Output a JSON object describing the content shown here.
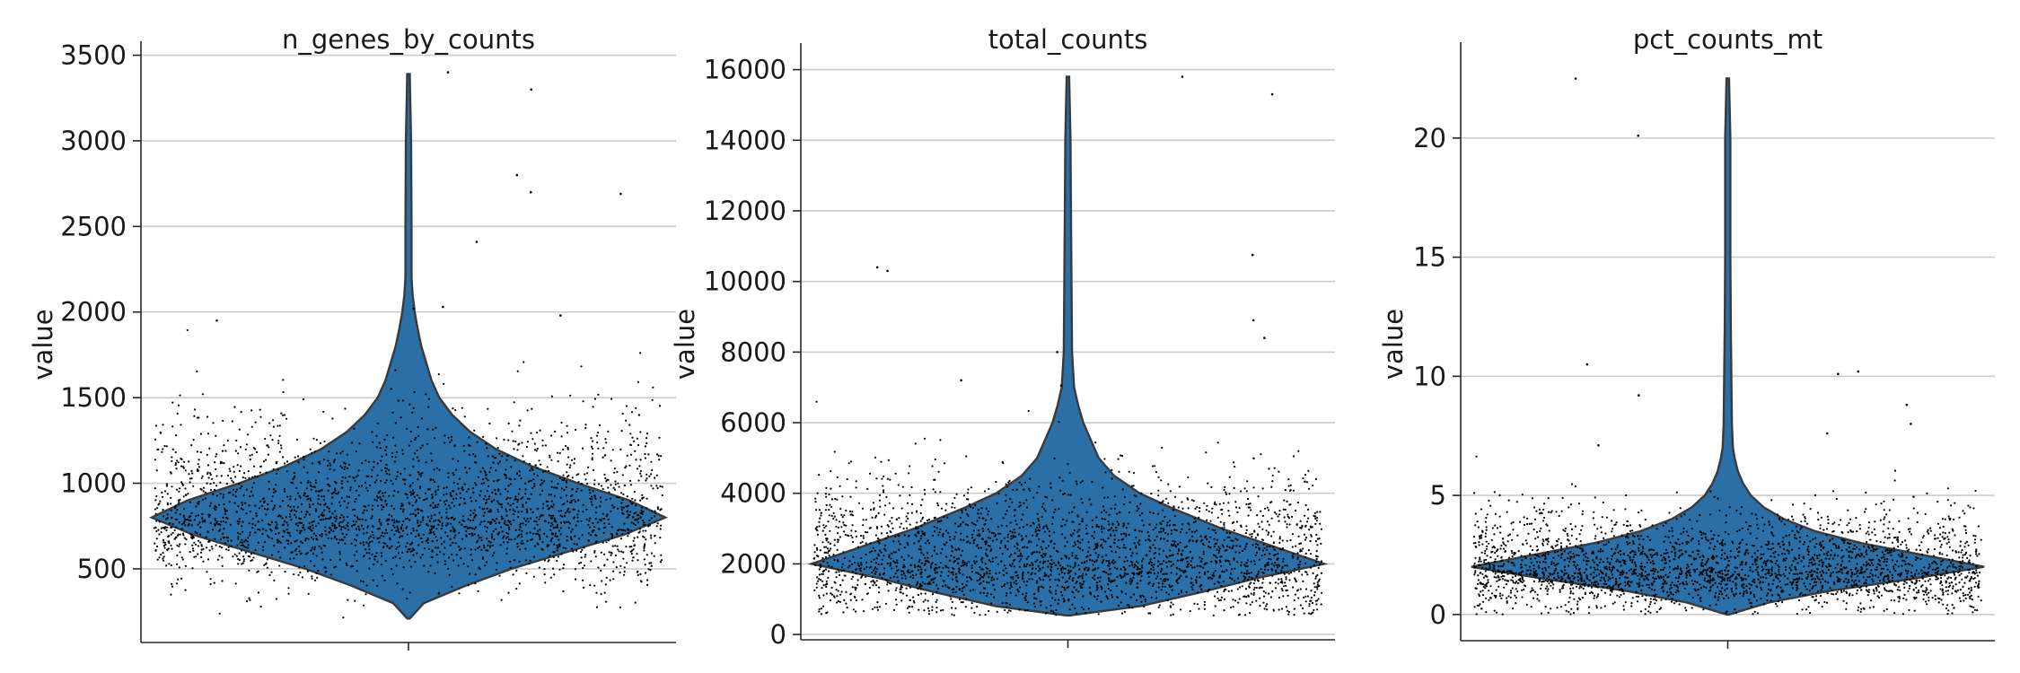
{
  "chart_data": [
    {
      "type": "violin",
      "title": "n_genes_by_counts",
      "xlabel": "",
      "ylabel": "value",
      "ylim": [
        70,
        3550
      ],
      "yticks": [
        500,
        1000,
        1500,
        2000,
        2500,
        3000,
        3500
      ],
      "grid": true,
      "color": "#2a6fa5",
      "violin": {
        "y": [
          210,
          300,
          400,
          500,
          600,
          700,
          800,
          900,
          1000,
          1100,
          1200,
          1300,
          1400,
          1500,
          1600,
          1700,
          1800,
          1900,
          2000,
          2100,
          2200,
          2500,
          3000,
          3390
        ],
        "half_width": [
          0.0,
          0.03,
          0.11,
          0.2,
          0.31,
          0.42,
          0.5,
          0.43,
          0.33,
          0.24,
          0.17,
          0.12,
          0.085,
          0.06,
          0.045,
          0.035,
          0.025,
          0.018,
          0.012,
          0.008,
          0.006,
          0.006,
          0.005,
          0.0
        ]
      },
      "points": {
        "n": 2640,
        "center": 800,
        "spread": 230,
        "min": 210,
        "max": 2000
      },
      "outliers": [
        2020,
        2800,
        2700,
        3300,
        2410,
        2690,
        3400,
        1980,
        1950,
        2030
      ]
    },
    {
      "type": "violin",
      "title": "total_counts",
      "xlabel": "",
      "ylabel": "value",
      "ylim": [
        -150,
        16600
      ],
      "yticks": [
        0,
        2000,
        4000,
        6000,
        8000,
        10000,
        12000,
        14000,
        16000
      ],
      "grid": true,
      "color": "#2a6fa5",
      "violin": {
        "y": [
          540,
          800,
          1200,
          1600,
          2000,
          2400,
          3000,
          3600,
          4000,
          4500,
          5000,
          5500,
          6000,
          6500,
          7000,
          8000,
          10000,
          12000,
          14000,
          15800
        ],
        "half_width": [
          0.0,
          0.14,
          0.26,
          0.37,
          0.5,
          0.42,
          0.3,
          0.2,
          0.14,
          0.09,
          0.06,
          0.045,
          0.03,
          0.02,
          0.012,
          0.008,
          0.007,
          0.006,
          0.005,
          0.0
        ]
      },
      "points": {
        "n": 2640,
        "center": 2100,
        "spread": 950,
        "min": 540,
        "max": 6600
      },
      "outliers": [
        15800,
        15300,
        10300,
        10400,
        10750,
        8900,
        8400,
        8000,
        7200,
        7050
      ]
    },
    {
      "type": "violin",
      "title": "pct_counts_mt",
      "xlabel": "",
      "ylabel": "value",
      "ylim": [
        -1.1,
        23.8
      ],
      "yticks": [
        0,
        5,
        10,
        15,
        20
      ],
      "grid": true,
      "color": "#2a6fa5",
      "violin": {
        "y": [
          0.0,
          0.5,
          1.0,
          1.5,
          2.0,
          2.5,
          3.0,
          3.5,
          4.0,
          4.5,
          5.0,
          5.5,
          6.0,
          6.5,
          7.0,
          8.0,
          10.0,
          12.0,
          15.0,
          20.0,
          22.5
        ],
        "half_width": [
          0.0,
          0.08,
          0.2,
          0.36,
          0.5,
          0.38,
          0.26,
          0.17,
          0.11,
          0.07,
          0.045,
          0.03,
          0.02,
          0.014,
          0.01,
          0.008,
          0.007,
          0.006,
          0.005,
          0.005,
          0.0
        ]
      },
      "points": {
        "n": 2640,
        "center": 1.9,
        "spread": 1.0,
        "min": 0.0,
        "max": 7.0
      },
      "outliers": [
        20.1,
        22.5,
        10.5,
        10.2,
        10.1,
        9.2,
        8.8,
        8.0,
        7.6,
        7.1
      ]
    }
  ]
}
